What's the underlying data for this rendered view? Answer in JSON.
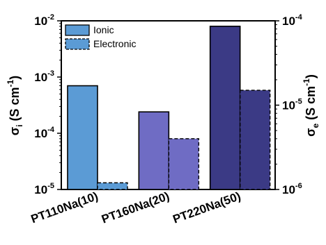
{
  "chart_data": {
    "type": "bar",
    "categories": [
      "PT110Na(10)",
      "PT160Na(20)",
      "PT220Na(50)"
    ],
    "series": [
      {
        "name": "Ionic",
        "axis": "left",
        "values": [
          0.0007,
          0.00024,
          0.008
        ],
        "colors": [
          "#5b9bd5",
          "#6f6cc4",
          "#3b3a85"
        ],
        "border": "solid"
      },
      {
        "name": "Electronic",
        "axis": "right",
        "values": [
          1.2e-06,
          4e-06,
          1.5e-05
        ],
        "colors": [
          "#5b9bd5",
          "#6f6cc4",
          "#3b3a85"
        ],
        "border": "dashed"
      }
    ],
    "left_axis": {
      "scale": "log",
      "ylim": [
        1e-05,
        0.01
      ],
      "ticks": [
        {
          "value": 0.01,
          "base": "10",
          "exp": "-2"
        },
        {
          "value": 0.001,
          "base": "10",
          "exp": "-3"
        },
        {
          "value": 0.0001,
          "base": "10",
          "exp": "-4"
        },
        {
          "value": 1e-05,
          "base": "10",
          "exp": "-5"
        }
      ],
      "label": {
        "sym": "σ",
        "sub": "i",
        "mid": " (S cm",
        "sup": "-1",
        "end": ")"
      }
    },
    "right_axis": {
      "scale": "log",
      "ylim": [
        1e-06,
        0.0001
      ],
      "ticks": [
        {
          "value": 0.0001,
          "base": "10",
          "exp": "-4"
        },
        {
          "value": 1e-05,
          "base": "10",
          "exp": "-5"
        },
        {
          "value": 1e-06,
          "base": "10",
          "exp": "-6"
        }
      ],
      "label": {
        "sym": "σ",
        "sub": "e",
        "mid": " (S cm",
        "sup": "-1",
        "end": ")"
      }
    },
    "legend": {
      "placement": "top-left",
      "items": [
        {
          "label": "Ionic",
          "color": "#5b9bd5",
          "border": "solid"
        },
        {
          "label": "Electronic",
          "color": "#5b9bd5",
          "border": "dashed"
        }
      ]
    },
    "grid": false
  }
}
